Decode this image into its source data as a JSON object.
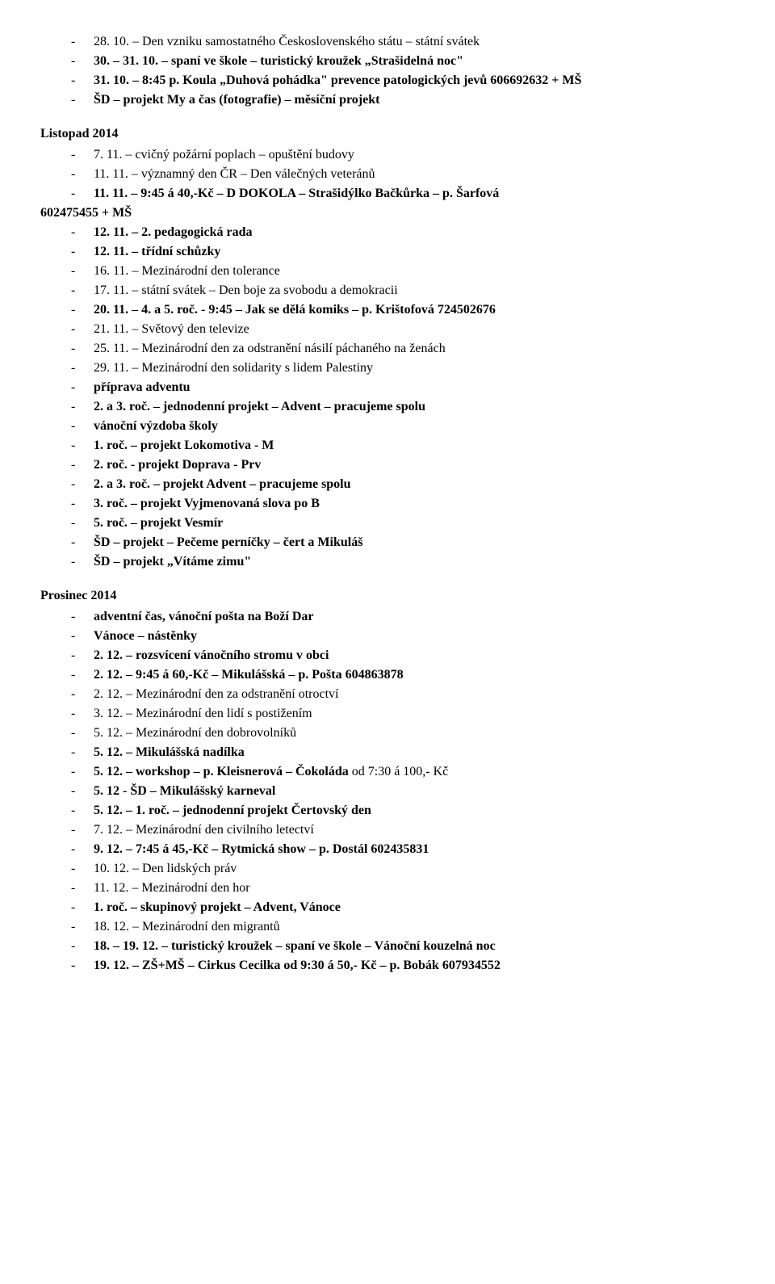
{
  "lines": [
    {
      "text": "28. 10. – Den vzniku samostatného Československého státu – státní svátek",
      "bold": false
    },
    {
      "text": "30. – 31. 10. – spaní ve škole – turistický kroužek „Strašidelná noc\"",
      "bold": true
    },
    {
      "text": "31. 10. – 8:45 p. Koula „Duhová pohádka\" prevence patologických jevů 606692632 + MŠ",
      "bold": true
    },
    {
      "text": "ŠD – projekt My a čas (fotografie) – měsíční projekt",
      "bold": true
    }
  ],
  "heading1": "Listopad 2014",
  "lines2": [
    {
      "text": "7. 11. – cvičný požární poplach – opuštění budovy",
      "bold": false
    },
    {
      "text": "11. 11. – významný den ČR – Den válečných veteránů",
      "bold": false
    },
    {
      "text": "11. 11. – 9:45 á 40,-Kč – D DOKOLA – Strašidýlko Bačkůrka – p. Šarfová 602475455 + MŠ",
      "bold": true,
      "wrapNoIndent": true
    },
    {
      "text": "12. 11. – 2. pedagogická rada",
      "bold": true
    },
    {
      "text": "12. 11. – třídní schůzky",
      "bold": true
    },
    {
      "text": "16. 11. – Mezinárodní den tolerance",
      "bold": false
    },
    {
      "text": "17. 11. – státní svátek – Den boje za svobodu a demokracii",
      "bold": false
    },
    {
      "text": "20. 11. – 4. a 5. roč.  -  9:45 – Jak se dělá komiks – p. Krištofová 724502676",
      "bold": true
    },
    {
      "text": "21. 11. – Světový den televize",
      "bold": false
    },
    {
      "text": "25. 11. – Mezinárodní den za odstranění násilí páchaného na ženách",
      "bold": false
    },
    {
      "text": "29. 11. – Mezinárodní den solidarity s lidem Palestiny",
      "bold": false
    },
    {
      "text": "příprava adventu",
      "bold": true
    },
    {
      "text": "2. a 3. roč. – jednodenní projekt – Advent – pracujeme spolu",
      "bold": true
    },
    {
      "text": "vánoční výzdoba školy",
      "bold": true
    },
    {
      "text": "1. roč. – projekt Lokomotiva - M",
      "bold": true
    },
    {
      "text": "2. roč. -  projekt Doprava - Prv",
      "bold": true
    },
    {
      "text": "2. a 3. roč. – projekt Advent – pracujeme spolu",
      "bold": true
    },
    {
      "text": "3. roč. – projekt Vyjmenovaná slova po B",
      "bold": true
    },
    {
      "text": "5. roč. – projekt Vesmír",
      "bold": true
    },
    {
      "text": "ŠD – projekt – Pečeme perníčky – čert a Mikuláš",
      "bold": true
    },
    {
      "text": "ŠD – projekt „Vítáme zimu\"",
      "bold": true
    }
  ],
  "heading2": "Prosinec 2014",
  "lines3": [
    {
      "text": "adventní čas, vánoční pošta na Boží Dar",
      "bold": true
    },
    {
      "text": "Vánoce – nástěnky",
      "bold": true
    },
    {
      "text": "2. 12. – rozsvícení vánočního stromu v obci",
      "bold": true
    },
    {
      "text": "2. 12. – 9:45 á 60,-Kč – Mikulášská – p. Pošta 604863878",
      "bold": true
    },
    {
      "text": "2. 12. – Mezinárodní den za odstranění otroctví",
      "bold": false
    },
    {
      "text": "3. 12. – Mezinárodní den lidí s postižením",
      "bold": false
    },
    {
      "text": "5. 12. – Mezinárodní den dobrovolníků",
      "bold": false
    },
    {
      "text": "5. 12. – Mikulášská nadílka",
      "bold": true
    },
    {
      "text": "5. 12. – workshop – p. Kleisnerová – Čokoláda od 7:30 á 100,- Kč",
      "bold": true,
      "partialBold": "5. 12. – workshop – p. Kleisnerová – Čokoláda ",
      "partialRest": "od 7:30 á 100,- Kč"
    },
    {
      "text": "5. 12 -  ŠD – Mikulášský karneval",
      "bold": true
    },
    {
      "text": "5. 12. – 1. roč. – jednodenní projekt Čertovský den",
      "bold": true
    },
    {
      "text": "7. 12. – Mezinárodní den civilního letectví",
      "bold": false
    },
    {
      "text": "9. 12. – 7:45 á 45,-Kč – Rytmická show – p. Dostál 602435831",
      "bold": true
    },
    {
      "text": "10. 12. – Den lidských práv",
      "bold": false
    },
    {
      "text": "11. 12. – Mezinárodní den hor",
      "bold": false
    },
    {
      "text": " 1. roč. – skupinový projekt – Advent, Vánoce",
      "bold": true
    },
    {
      "text": "18. 12. – Mezinárodní den migrantů",
      "bold": false
    },
    {
      "text": "18. – 19. 12. – turistický kroužek – spaní ve škole – Vánoční kouzelná noc",
      "bold": true
    },
    {
      "text": "19. 12. – ZŠ+MŠ – Cirkus Cecilka od 9:30 á 50,- Kč – p. Bobák 607934552",
      "bold": true
    }
  ]
}
